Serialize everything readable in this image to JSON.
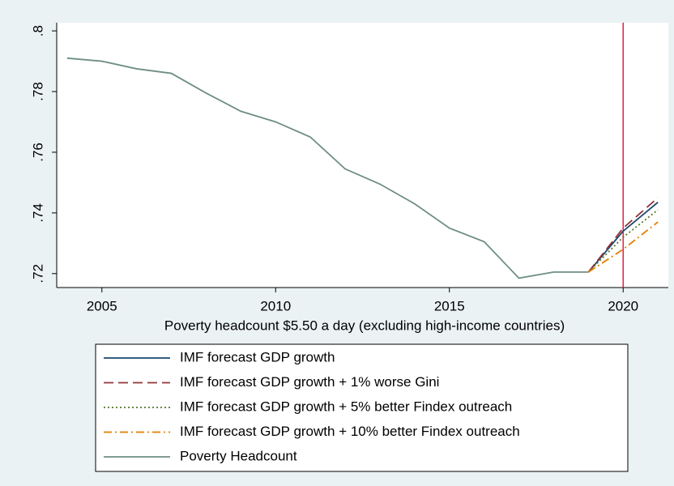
{
  "chart_data": {
    "type": "line",
    "x_label": "Poverty headcount $5.50 a day (excluding high-income countries)",
    "x": [
      2004,
      2005,
      2006,
      2007,
      2008,
      2009,
      2010,
      2011,
      2012,
      2013,
      2014,
      2015,
      2016,
      2017,
      2018,
      2019,
      2020,
      2021
    ],
    "series": [
      {
        "name": "IMF forecast GDP growth",
        "color": "#1a476f",
        "dash": "none",
        "values": [
          null,
          null,
          null,
          null,
          null,
          null,
          null,
          null,
          null,
          null,
          null,
          null,
          null,
          null,
          null,
          0.7205,
          0.734,
          0.7435
        ]
      },
      {
        "name": "IMF forecast GDP growth + 1% worse Gini",
        "color": "#90353b",
        "dash": "12 6",
        "values": [
          null,
          null,
          null,
          null,
          null,
          null,
          null,
          null,
          null,
          null,
          null,
          null,
          null,
          null,
          null,
          0.7205,
          0.735,
          0.745
        ]
      },
      {
        "name": "IMF forecast GDP growth + 5% better Findex outreach",
        "color": "#55752f",
        "dash": "2 3",
        "values": [
          null,
          null,
          null,
          null,
          null,
          null,
          null,
          null,
          null,
          null,
          null,
          null,
          null,
          null,
          null,
          0.7205,
          0.732,
          0.741
        ]
      },
      {
        "name": "IMF forecast GDP growth + 10% better Findex outreach",
        "color": "#e37e00",
        "dash": "10 4 2 4",
        "values": [
          null,
          null,
          null,
          null,
          null,
          null,
          null,
          null,
          null,
          null,
          null,
          null,
          null,
          null,
          null,
          0.7205,
          0.728,
          0.737
        ]
      },
      {
        "name": "Poverty Headcount",
        "color": "#6e8e84",
        "dash": "none",
        "values": [
          0.791,
          0.79,
          0.7875,
          0.786,
          0.7795,
          0.7735,
          0.77,
          0.765,
          0.7545,
          0.7495,
          0.743,
          0.735,
          0.7305,
          0.7185,
          0.7205,
          0.7205,
          null,
          null
        ]
      }
    ],
    "reference_line": {
      "x": 2020,
      "color": "#e0204a"
    },
    "xlim": [
      2003.7,
      2021.3
    ],
    "xticks": [
      2005,
      2010,
      2015,
      2020
    ],
    "ylim": [
      0.7154,
      0.8027
    ],
    "yticks": [
      {
        "value": 0.72,
        "label": ".72"
      },
      {
        "value": 0.74,
        "label": ".74"
      },
      {
        "value": 0.76,
        "label": ".76"
      },
      {
        "value": 0.78,
        "label": ".78"
      },
      {
        "value": 0.8,
        "label": ".8"
      }
    ],
    "legend": "bottom"
  }
}
